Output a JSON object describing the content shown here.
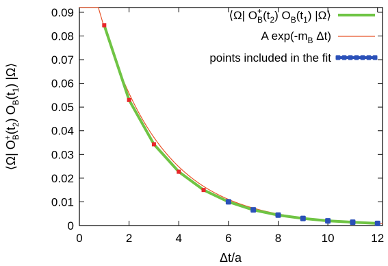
{
  "chart_data": {
    "type": "line",
    "xlabel": "Δt/a",
    "ylabel": "⟨Ω| O_B^+(t_2) O_B(t_1) |Ω⟩",
    "xlim": [
      0,
      12.2
    ],
    "ylim": [
      0,
      0.092
    ],
    "xticks": [
      0,
      2,
      4,
      6,
      8,
      10,
      12
    ],
    "yticks": [
      0,
      0.01,
      0.02,
      0.03,
      0.04,
      0.05,
      0.06,
      0.07,
      0.08,
      0.09
    ],
    "xtick_labels": [
      "0",
      "2",
      "4",
      "6",
      "8",
      "10",
      "12"
    ],
    "ytick_labels": [
      "0",
      "0.01",
      "0.02",
      "0.03",
      "0.04",
      "0.05",
      "0.06",
      "0.07",
      "0.08",
      "0.09"
    ],
    "grid": false,
    "legend_position": "top-right",
    "series": [
      {
        "name": "⟨Ω| O_B^+(t_2) O_B(t_1) |Ω⟩",
        "style": "thick-line-with-points",
        "color": "#6fc444",
        "marker_color": "#e8262a",
        "x": [
          1,
          2,
          3,
          4,
          5,
          6,
          7,
          8,
          9,
          10,
          11,
          12
        ],
        "y": [
          0.0845,
          0.053,
          0.0343,
          0.0227,
          0.015,
          0.01,
          0.0066,
          0.0044,
          0.003,
          0.002,
          0.0014,
          0.0009
        ]
      },
      {
        "name": "A exp(-m_B Δt)",
        "style": "thin-fit-curve",
        "color": "#e8542a",
        "A": 0.1255,
        "mB": 0.4053
      },
      {
        "name": "points included in the fit",
        "style": "markers",
        "color": "#2a50b8",
        "x": [
          6,
          7,
          8,
          9,
          10,
          11,
          12
        ],
        "y": [
          0.01,
          0.0066,
          0.0044,
          0.003,
          0.002,
          0.0014,
          0.0009
        ]
      }
    ],
    "legend_entries": {
      "series1_main": "⟨Ω| O",
      "series1_sup": "+",
      "series1_sub_B": "B",
      "series1_t2": "(t",
      "series1_sub_2": "2",
      "series1_mid": ") O",
      "series1_sub_B2": "B",
      "series1_t1": "(t",
      "series1_sub_1": "1",
      "series1_end": ") |Ω⟩",
      "series2_main": "A exp(-m",
      "series2_sub": "B",
      "series2_end": " Δt)",
      "series3": "points included in the fit"
    },
    "xlabel_parts": {
      "main": "Δt/a"
    },
    "ylabel_parts": {
      "a": "⟨Ω| O",
      "sup": "+",
      "subB": "B",
      "b": "(t",
      "sub2": "2",
      "c": ") O",
      "subB2": "B",
      "d": "(t",
      "sub1": "1",
      "e": ") |Ω⟩"
    }
  }
}
